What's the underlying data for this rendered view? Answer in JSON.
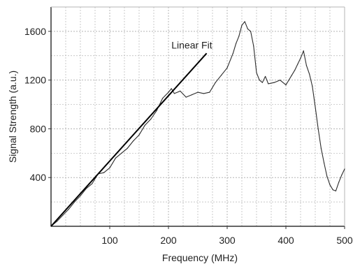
{
  "chart_data": {
    "type": "line",
    "title": "",
    "xlabel": "Frequency (MHz)",
    "ylabel": "Signal Strength (a.u.)",
    "xlim": [
      0,
      500
    ],
    "ylim": [
      0,
      1800
    ],
    "xticks": [
      100,
      200,
      300,
      400,
      500
    ],
    "yticks": [
      400,
      800,
      1200,
      1600
    ],
    "grid": true,
    "legend": "none",
    "colors": {
      "line": "#2b2b2b",
      "fit": "#000000",
      "grid": "#b5b5b5",
      "axis": "#333333"
    },
    "annotations": [
      {
        "text": "Linear Fit"
      }
    ],
    "series": [
      {
        "x": [
          0,
          10,
          20,
          30,
          40,
          50,
          60,
          70,
          80,
          90,
          100,
          110,
          120,
          130,
          140,
          150,
          160,
          170,
          180,
          190,
          200,
          205,
          210,
          220,
          230,
          240,
          250,
          260,
          270,
          280,
          290,
          300,
          310,
          315,
          320,
          325,
          330,
          335,
          340,
          345,
          350,
          355,
          360,
          365,
          370,
          380,
          390,
          400,
          405,
          410,
          415,
          420,
          425,
          430,
          435,
          440,
          445,
          450,
          455,
          460,
          465,
          470,
          475,
          480,
          485,
          490,
          495,
          500
        ],
        "values": [
          0,
          40,
          90,
          140,
          200,
          250,
          310,
          350,
          430,
          440,
          480,
          560,
          600,
          640,
          700,
          750,
          830,
          880,
          950,
          1050,
          1100,
          1130,
          1090,
          1110,
          1060,
          1080,
          1100,
          1090,
          1100,
          1180,
          1240,
          1300,
          1420,
          1500,
          1560,
          1650,
          1680,
          1620,
          1600,
          1480,
          1260,
          1200,
          1180,
          1230,
          1170,
          1180,
          1200,
          1160,
          1200,
          1240,
          1280,
          1330,
          1380,
          1440,
          1320,
          1250,
          1150,
          980,
          800,
          640,
          520,
          410,
          340,
          300,
          290,
          360,
          420,
          470
        ]
      },
      {
        "x": [
          0,
          265
        ],
        "values": [
          0,
          1420
        ]
      }
    ]
  }
}
